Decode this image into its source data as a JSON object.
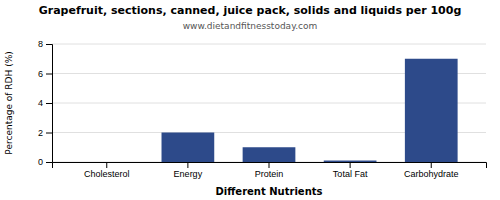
{
  "chart_data": {
    "type": "bar",
    "title": "Grapefruit, sections, canned, juice pack, solids and liquids per 100g",
    "subtitle": "www.dietandfitnesstoday.com",
    "xlabel": "Different Nutrients",
    "ylabel": "Percentage of RDH (%)",
    "categories": [
      "Cholesterol",
      "Energy",
      "Protein",
      "Total Fat",
      "Carbohydrate"
    ],
    "values": [
      0,
      2.0,
      1.0,
      0.1,
      7.0
    ],
    "color": "#2d4a8a",
    "ylim": [
      0,
      8
    ],
    "yticks": [
      0,
      2,
      4,
      6,
      8
    ],
    "grid": true
  }
}
